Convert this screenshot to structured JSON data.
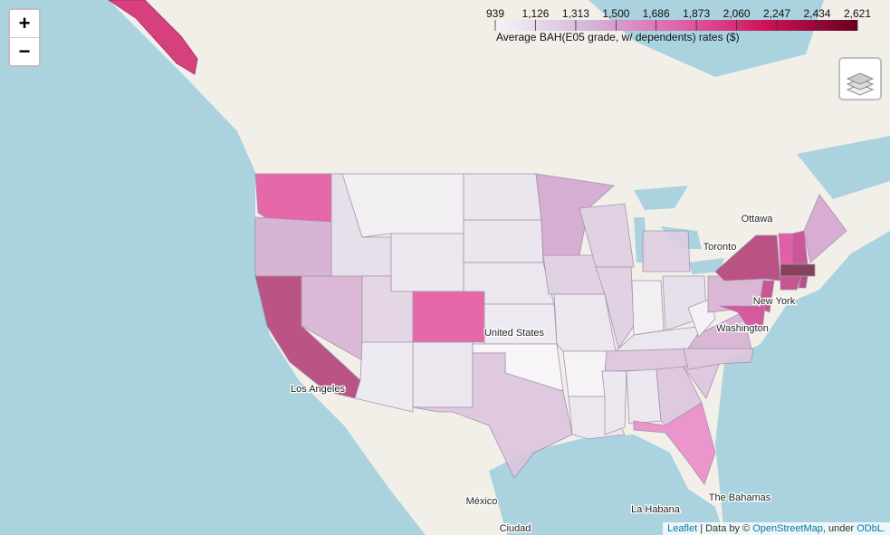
{
  "zoom": {
    "in": "+",
    "out": "−"
  },
  "legend": {
    "title": "Average BAH(E05 grade, w/ dependents) rates ($)",
    "ticks": [
      939,
      {
        "value": 1126,
        "label": "1,126"
      },
      {
        "value": 1313,
        "label": "1,313"
      },
      {
        "value": 1500,
        "label": "1,500"
      },
      {
        "value": 1686,
        "label": "1,686"
      },
      {
        "value": 1873,
        "label": "1,873"
      },
      {
        "value": 2060,
        "label": "2,060"
      },
      {
        "value": 2247,
        "label": "2,247"
      },
      {
        "value": 2434,
        "label": "2,434"
      },
      {
        "value": 2621,
        "label": "2,621"
      }
    ],
    "colors": [
      "#f7f4f9",
      "#d4b9da",
      "#df65b0",
      "#ce1256",
      "#67001f"
    ]
  },
  "places": [
    "Ottawa",
    "Toronto",
    "New York",
    "Washington",
    "United States",
    "Los Angeles",
    "México",
    "La Habana",
    "The Bahamas",
    "Ciudad"
  ],
  "attribution": {
    "leaflet": "Leaflet",
    "data": "| Data by ©",
    "osm": "OpenStreetMap",
    "under": ", under",
    "odbl": "ODbL."
  }
}
